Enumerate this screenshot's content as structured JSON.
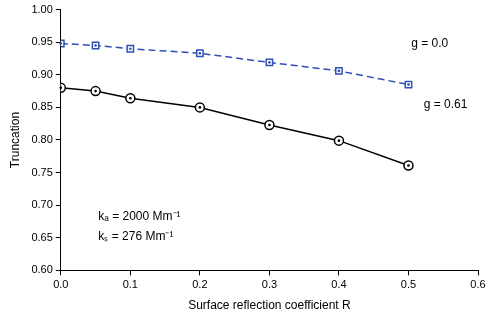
{
  "chart_data": {
    "type": "line",
    "x_label": "Surface reflection coefficient R",
    "y_label": "Truncation",
    "x": [
      0.0,
      0.05,
      0.1,
      0.2,
      0.3,
      0.4,
      0.5
    ],
    "series": [
      {
        "name": "g = 0.0",
        "color": "#2f4fb5",
        "marker": "square",
        "line_style": "dashed",
        "values": [
          0.948,
          0.945,
          0.94,
          0.933,
          0.919,
          0.906,
          0.885
        ]
      },
      {
        "name": "g = 0.61",
        "color": "#000000",
        "marker": "circle",
        "line_style": "solid",
        "values": [
          0.88,
          0.875,
          0.864,
          0.85,
          0.823,
          0.799,
          0.761
        ]
      }
    ],
    "annotations": [
      "g = 0.0",
      "g = 0.61",
      "kₐ = 2000 Mm⁻¹",
      "kₛ = 276 Mm⁻¹"
    ],
    "xlim": [
      0.0,
      0.6
    ],
    "xticks": [
      {
        "value": 0.0,
        "label": "0.0"
      },
      0.1,
      0.2,
      0.3,
      0.4,
      0.5,
      0.6
    ],
    "ylim": [
      0.6,
      1.0
    ],
    "yticks": [
      {
        "value": 0.6,
        "label": "0.60"
      },
      {
        "value": 0.65,
        "label": "0.65"
      },
      {
        "value": 0.7,
        "label": "0.70"
      },
      0.75,
      {
        "value": 0.8,
        "label": "0.80"
      },
      0.85,
      {
        "value": 0.9,
        "label": "0.90"
      },
      0.95,
      {
        "value": 1.0,
        "label": "1.00"
      }
    ],
    "grid": false,
    "legend": "none"
  }
}
